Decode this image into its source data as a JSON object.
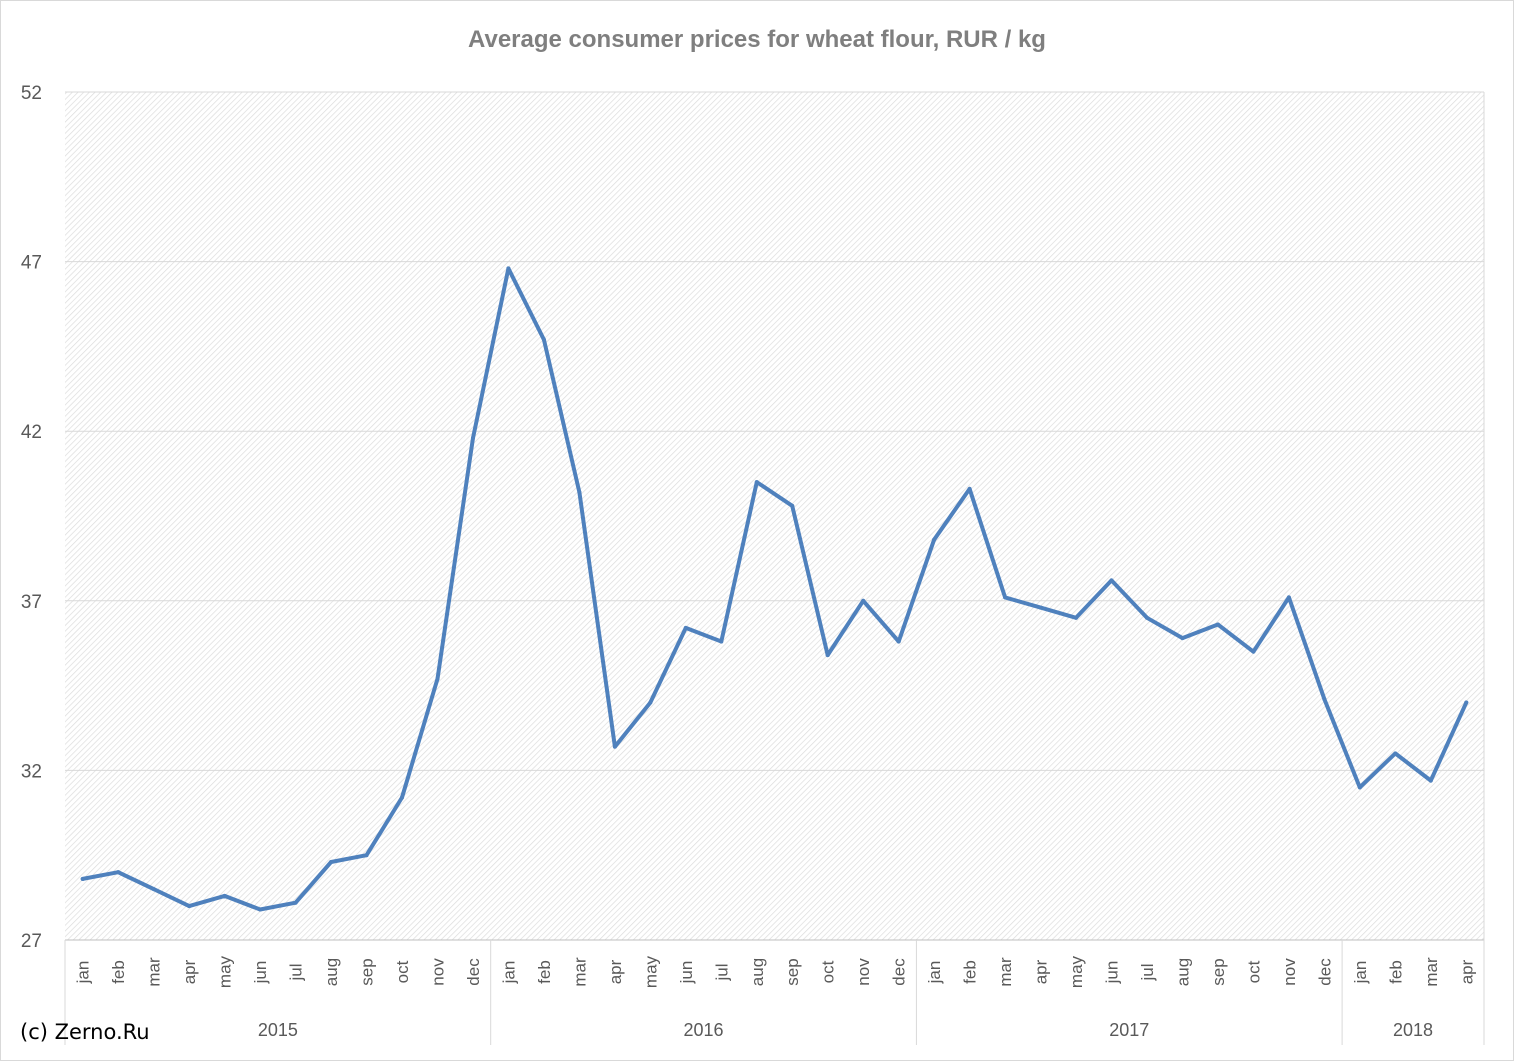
{
  "chart_data": {
    "type": "line",
    "title": "Average consumer prices for wheat flour, RUR / kg",
    "xlabel": "",
    "ylabel": "",
    "ylim": [
      27,
      52
    ],
    "yticks": [
      "27",
      "32",
      "37",
      "42",
      "47",
      "52"
    ],
    "grid": true,
    "legend": "none",
    "line_color": "#4f81bd",
    "years": [
      {
        "label": "2015",
        "months": [
          "jan",
          "feb",
          "mar",
          "apr",
          "may",
          "jun",
          "jul",
          "aug",
          "sep",
          "oct",
          "nov",
          "dec"
        ]
      },
      {
        "label": "2016",
        "months": [
          "jan",
          "feb",
          "mar",
          "apr",
          "may",
          "jun",
          "jul",
          "aug",
          "sep",
          "oct",
          "nov",
          "dec"
        ]
      },
      {
        "label": "2017",
        "months": [
          "jan",
          "feb",
          "mar",
          "apr",
          "may",
          "jun",
          "jul",
          "aug",
          "sep",
          "oct",
          "nov",
          "dec"
        ]
      },
      {
        "label": "2018",
        "months": [
          "jan",
          "feb",
          "mar",
          "apr"
        ]
      }
    ],
    "series": [
      {
        "values": [
          28.8,
          29.0,
          28.5,
          28.0,
          28.3,
          27.9,
          28.1,
          29.3,
          29.5,
          31.2,
          34.7,
          41.8,
          46.8,
          44.7,
          40.2,
          32.7,
          34.0,
          36.2,
          35.8,
          40.5,
          39.8,
          35.4,
          37.0,
          35.8,
          38.8,
          40.3,
          37.1,
          36.8,
          36.5,
          37.6,
          36.5,
          35.9,
          36.3,
          35.5,
          37.1,
          34.1,
          31.5,
          32.5,
          31.7,
          34.0
        ]
      }
    ]
  },
  "footer": {
    "copyright": "(c) Zerno.Ru"
  }
}
